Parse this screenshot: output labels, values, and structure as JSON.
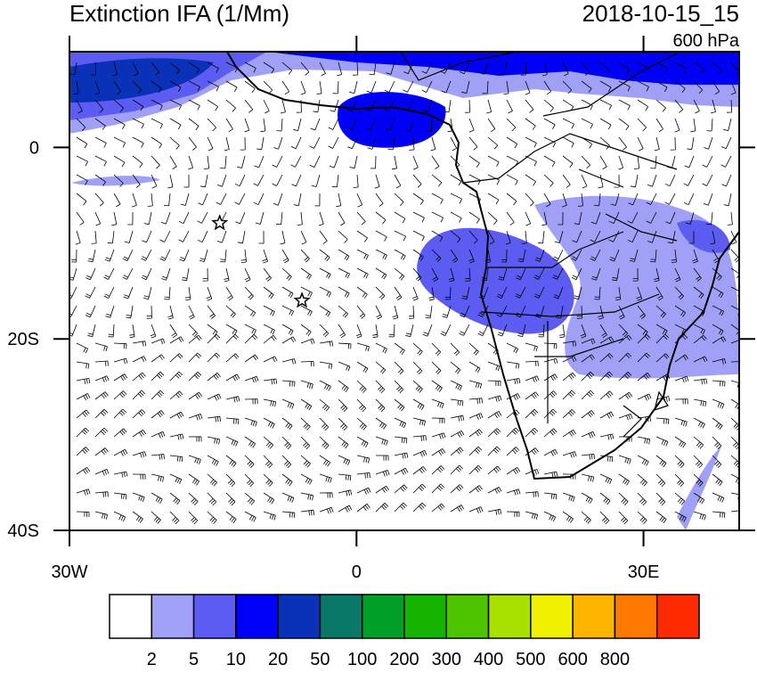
{
  "chart_data": {
    "type": "map",
    "title": "Extinction IFA (1/Mm)",
    "date": "2018-10-15_15",
    "level": "600 hPa",
    "xlim": [
      -30,
      40
    ],
    "ylim": [
      -40,
      10
    ],
    "xticks": [
      {
        "value": -30,
        "label": "30W"
      },
      0,
      {
        "value": 30,
        "label": "30E"
      }
    ],
    "yticks": [
      0,
      {
        "value": -20,
        "label": "20S"
      },
      {
        "value": -40,
        "label": "40S"
      }
    ],
    "markers": {
      "x": [
        -14.3,
        -5.7
      ],
      "y": [
        -7.9,
        -16
      ]
    },
    "colorbar": {
      "levels": [
        2,
        5,
        10,
        20,
        50,
        100,
        200,
        300,
        400,
        500,
        600,
        800
      ],
      "colors": [
        "#ffffff",
        "#a0a0f7",
        "#5c5cf2",
        "#0000f8",
        "#0a32b8",
        "#0a7866",
        "#00a028",
        "#14b400",
        "#4cc400",
        "#a8e000",
        "#f0f000",
        "#ffb400",
        "#ff7800",
        "#ff2a00"
      ]
    }
  }
}
